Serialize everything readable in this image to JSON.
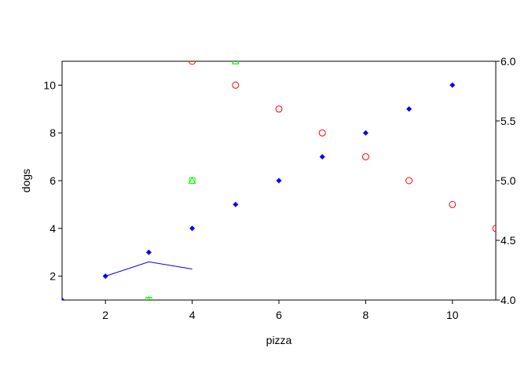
{
  "chart_data": {
    "type": "scatter",
    "title": "",
    "xlabel": "pizza",
    "ylabel": "dogs",
    "y2label": "",
    "xlim": [
      1,
      11
    ],
    "ylim": [
      1,
      11
    ],
    "y2lim": [
      4.0,
      6.0
    ],
    "grid": false,
    "xticks": [
      "2",
      "4",
      "6",
      "8",
      "10"
    ],
    "yticks": [
      "2",
      "4",
      "6",
      "8",
      "10"
    ],
    "y2ticks": [
      "4.0",
      "4.5",
      "5.0",
      "5.5",
      "6.0"
    ],
    "series": [
      {
        "axis": "left",
        "marker": "filled-diamond",
        "color": "#0000ff",
        "x": [
          1,
          2,
          3,
          4,
          5,
          6,
          7,
          8,
          9,
          10
        ],
        "y": [
          1,
          2,
          3,
          4,
          5,
          6,
          7,
          8,
          9,
          10
        ]
      },
      {
        "axis": "left",
        "marker": "open-circle",
        "color": "#ff0000",
        "x": [
          4,
          5,
          6,
          7,
          8,
          9,
          10,
          11
        ],
        "y": [
          11,
          10,
          9,
          8,
          7,
          6,
          5,
          4
        ]
      },
      {
        "axis": "left",
        "marker": "open-triangle",
        "color": "#00ff00",
        "x": [
          3,
          4,
          5
        ],
        "y": [
          1,
          6,
          11
        ]
      },
      {
        "axis": "left",
        "marker": "open-square",
        "color": "#00ff00",
        "x": [
          3,
          4,
          5
        ],
        "y": [
          1,
          6,
          11
        ]
      },
      {
        "axis": "right",
        "marker": "line",
        "color": "#0000ff",
        "x": [
          2,
          3,
          4
        ],
        "y": [
          4.2,
          4.32,
          4.26
        ]
      }
    ]
  }
}
